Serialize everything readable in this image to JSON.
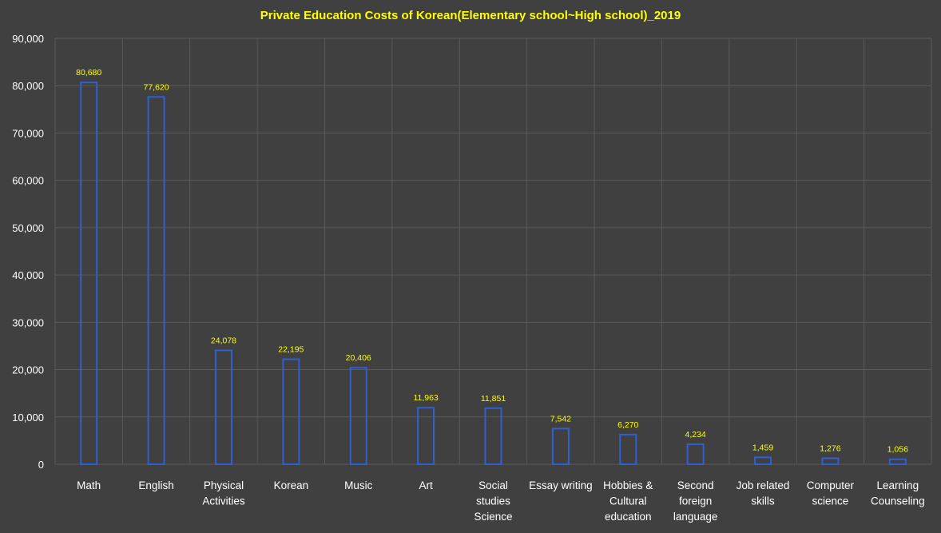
{
  "chart_data": {
    "type": "bar",
    "title": "Private Education Costs of Korean(Elementary school~High school)_2019",
    "categories": [
      [
        "Math"
      ],
      [
        "English"
      ],
      [
        "Physical",
        "Activities"
      ],
      [
        "Korean"
      ],
      [
        "Music"
      ],
      [
        "Art"
      ],
      [
        "Social",
        "studies",
        "Science"
      ],
      [
        "Essay writing"
      ],
      [
        "Hobbies &",
        "Cultural",
        "education"
      ],
      [
        "Second",
        "foreign",
        "language"
      ],
      [
        "Job related",
        "skills"
      ],
      [
        "Computer",
        "science"
      ],
      [
        "Learning",
        "Counseling"
      ]
    ],
    "values": [
      80680,
      77620,
      24078,
      22195,
      20406,
      11963,
      11851,
      7542,
      6270,
      4234,
      1459,
      1276,
      1056
    ],
    "data_labels": [
      "80,680",
      "77,620",
      "24,078",
      "22,195",
      "20,406",
      "11,963",
      "11,851",
      "7,542",
      "6,270",
      "4,234",
      "1,459",
      "1,276",
      "1,056"
    ],
    "yticks": [
      "0",
      "10,000",
      "20,000",
      "30,000",
      "40,000",
      "50,000",
      "60,000",
      "70,000",
      "80,000",
      "90,000"
    ],
    "ylim": [
      0,
      90000
    ],
    "grid": true,
    "colors": {
      "background": "#404040",
      "bar_outline": "#2f5fd0",
      "title": "#ffff00",
      "data_label": "#ffff00",
      "tick_label": "#ffffff",
      "grid": "#5a5a5a"
    }
  }
}
